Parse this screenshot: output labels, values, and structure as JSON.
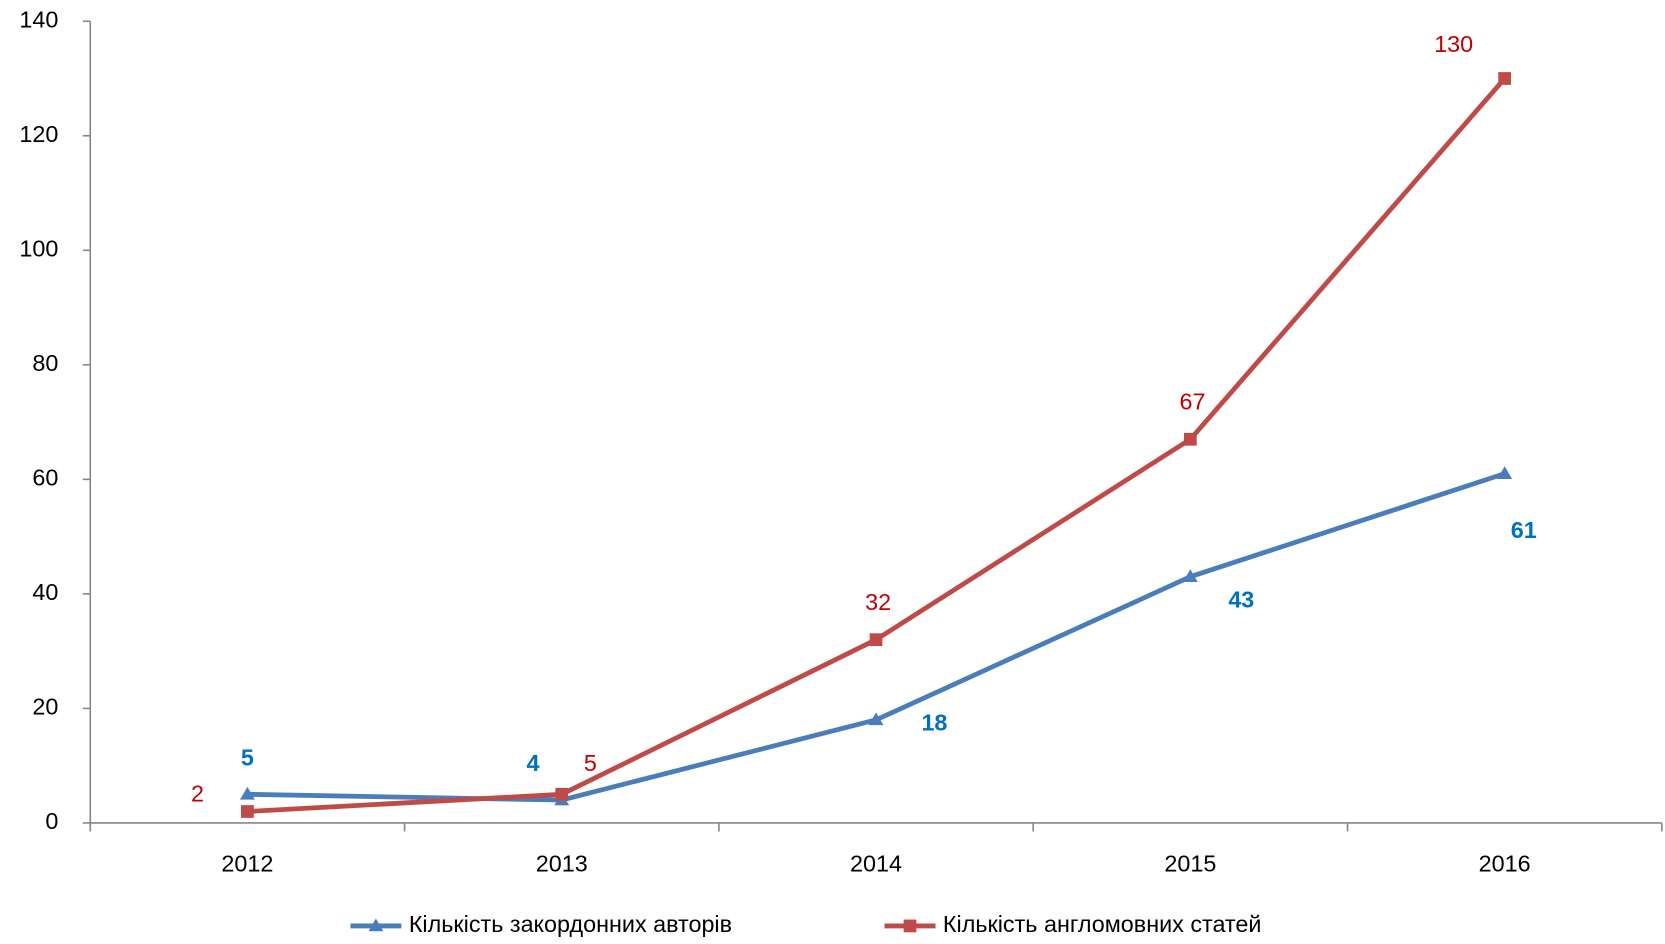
{
  "chart_data": {
    "type": "line",
    "categories": [
      "2012",
      "2013",
      "2014",
      "2015",
      "2016"
    ],
    "series": [
      {
        "name": "Кількість закордонних авторів",
        "color": "#4a7ebb",
        "label_color": "#0070c0",
        "marker": "triangle",
        "values": [
          5,
          4,
          18,
          43,
          61
        ]
      },
      {
        "name": "Кількість англомовних статей",
        "color": "#be4b48",
        "label_color": "#c00000",
        "marker": "square",
        "values": [
          2,
          5,
          32,
          67,
          130
        ]
      }
    ],
    "ylim": [
      0,
      140
    ],
    "yticks": [
      0,
      20,
      40,
      60,
      80,
      100,
      120,
      140
    ],
    "grid": false,
    "legend": "bottom"
  }
}
